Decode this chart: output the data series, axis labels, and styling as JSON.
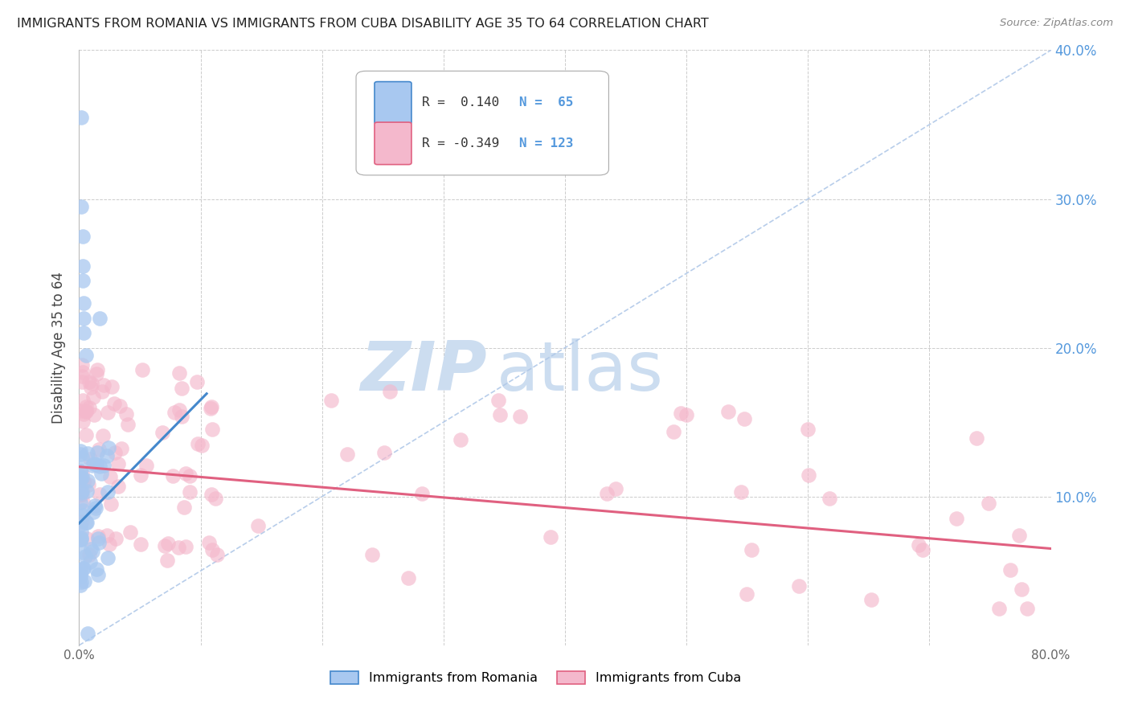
{
  "title": "IMMIGRANTS FROM ROMANIA VS IMMIGRANTS FROM CUBA DISABILITY AGE 35 TO 64 CORRELATION CHART",
  "source": "Source: ZipAtlas.com",
  "ylabel": "Disability Age 35 to 64",
  "xlim": [
    0.0,
    0.8
  ],
  "ylim": [
    0.0,
    0.4
  ],
  "romania_R": 0.14,
  "romania_N": 65,
  "cuba_R": -0.349,
  "cuba_N": 123,
  "romania_color": "#a8c8f0",
  "cuba_color": "#f4b8cc",
  "romania_line_color": "#4488cc",
  "cuba_line_color": "#e06080",
  "diagonal_color": "#b0c8e8",
  "background_color": "#ffffff",
  "grid_color": "#cccccc",
  "watermark_color": "#ccddf0",
  "right_tick_color": "#5599dd",
  "title_color": "#222222",
  "source_color": "#888888",
  "legend_romania_label": "Immigrants from Romania",
  "legend_cuba_label": "Immigrants from Cuba"
}
